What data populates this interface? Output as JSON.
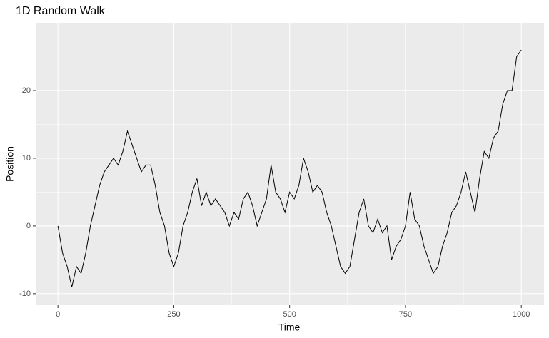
{
  "chart_data": {
    "type": "line",
    "title": "1D Random Walk",
    "x_label": "Time",
    "y_label": "Position",
    "x": [
      0,
      10,
      20,
      30,
      40,
      50,
      60,
      70,
      80,
      90,
      100,
      110,
      120,
      130,
      140,
      150,
      160,
      170,
      180,
      190,
      200,
      210,
      220,
      230,
      240,
      250,
      260,
      270,
      280,
      290,
      300,
      310,
      320,
      330,
      340,
      350,
      360,
      370,
      380,
      390,
      400,
      410,
      420,
      430,
      440,
      450,
      460,
      470,
      480,
      490,
      500,
      510,
      520,
      530,
      540,
      550,
      560,
      570,
      580,
      590,
      600,
      610,
      620,
      630,
      640,
      650,
      660,
      670,
      680,
      690,
      700,
      710,
      720,
      730,
      740,
      750,
      760,
      770,
      780,
      790,
      800,
      810,
      820,
      830,
      840,
      850,
      860,
      870,
      880,
      890,
      900,
      910,
      920,
      930,
      940,
      950,
      960,
      970,
      980,
      990,
      1000
    ],
    "series": [
      {
        "name": "Position",
        "color": "#000000",
        "values": [
          0,
          -4,
          -6,
          -9,
          -6,
          -7,
          -4,
          0,
          3,
          6,
          8,
          9,
          10,
          9,
          11,
          14,
          12,
          10,
          8,
          9,
          9,
          6,
          2,
          0,
          -4,
          -6,
          -4,
          0,
          2,
          5,
          7,
          3,
          5,
          3,
          4,
          3,
          2,
          0,
          2,
          1,
          4,
          5,
          3,
          0,
          2,
          4,
          9,
          5,
          4,
          2,
          5,
          4,
          6,
          10,
          8,
          5,
          6,
          5,
          2,
          0,
          -3,
          -6,
          -7,
          -6,
          -2,
          2,
          4,
          0,
          -1,
          1,
          -1,
          0,
          -5,
          -3,
          -2,
          0,
          5,
          1,
          0,
          -3,
          -5,
          -7,
          -6,
          -3,
          -1,
          2,
          3,
          5,
          8,
          5,
          2,
          7,
          11,
          10,
          13,
          14,
          18,
          20,
          20,
          25,
          26
        ]
      }
    ],
    "xlim": [
      -48,
      1049
    ],
    "ylim": [
      -11.7,
      30
    ],
    "xticks": [
      0,
      250,
      500,
      750,
      1000
    ],
    "yticks": [
      -10,
      0,
      10,
      20
    ],
    "grid": true
  }
}
